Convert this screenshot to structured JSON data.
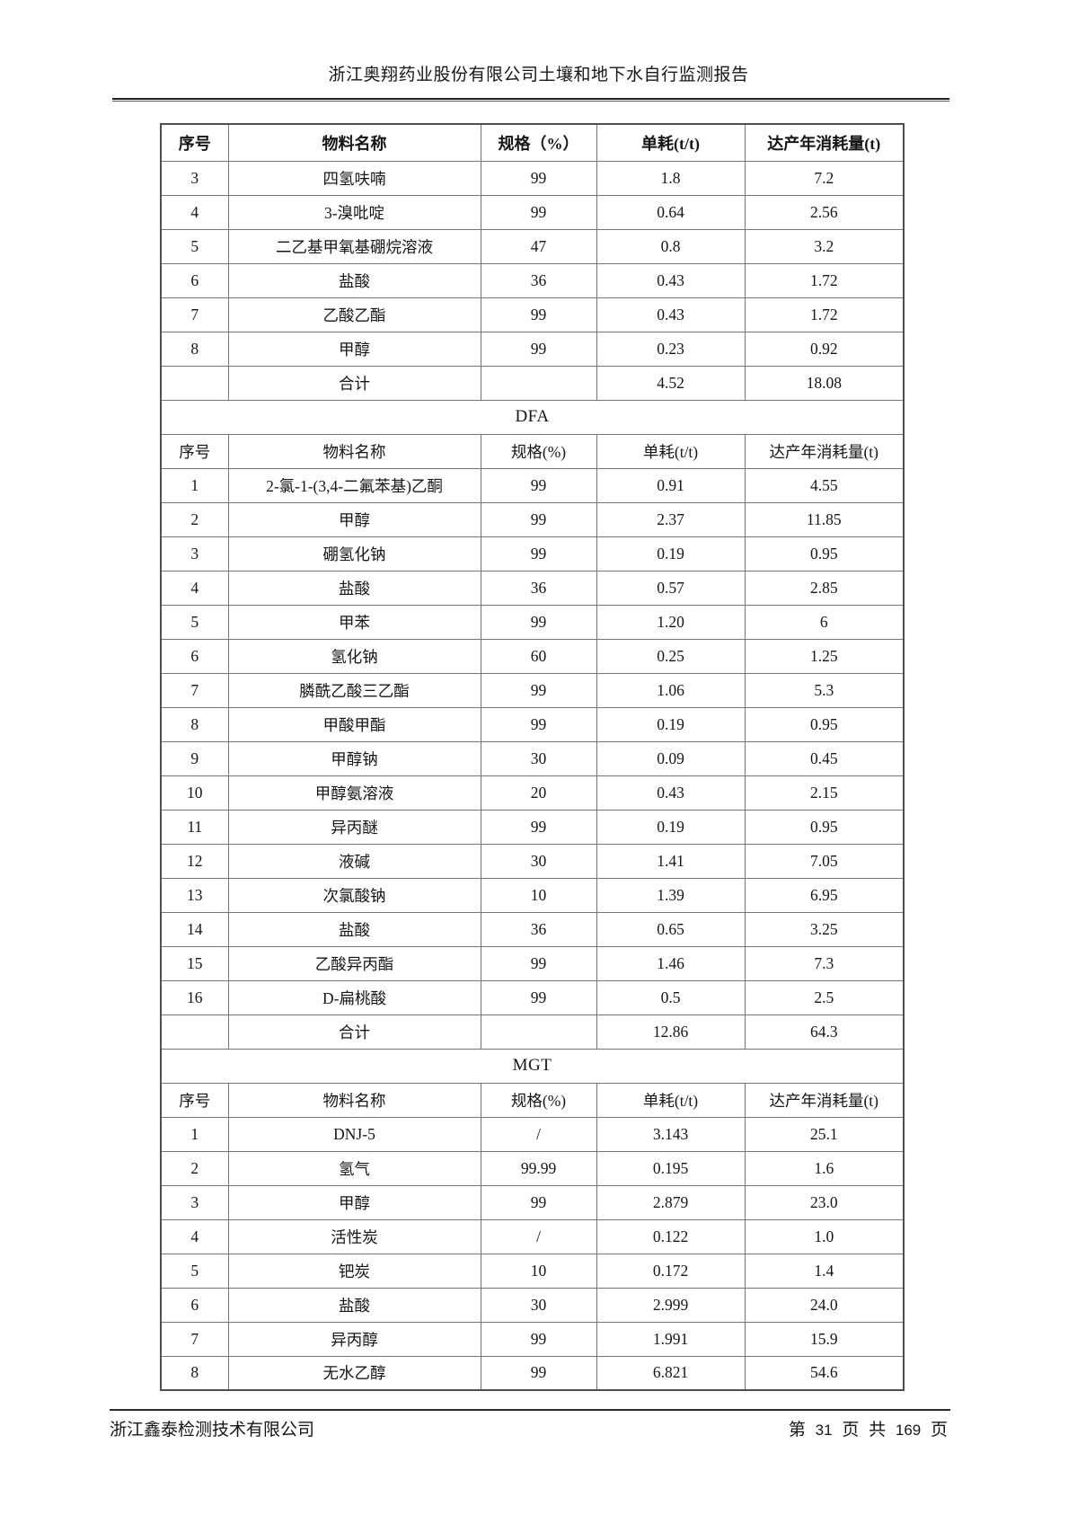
{
  "header": {
    "title": "浙江奥翔药业股份有限公司土壤和地下水自行监测报告"
  },
  "table": {
    "sections": [
      {
        "band": null,
        "header_bold": true,
        "columns": [
          "序号",
          "物料名称",
          "规格（%）",
          "单耗(t/t)",
          "达产年消耗量(t)"
        ],
        "rows": [
          [
            "3",
            "四氢呋喃",
            "99",
            "1.8",
            "7.2"
          ],
          [
            "4",
            "3-溴吡啶",
            "99",
            "0.64",
            "2.56"
          ],
          [
            "5",
            "二乙基甲氧基硼烷溶液",
            "47",
            "0.8",
            "3.2"
          ],
          [
            "6",
            "盐酸",
            "36",
            "0.43",
            "1.72"
          ],
          [
            "7",
            "乙酸乙酯",
            "99",
            "0.43",
            "1.72"
          ],
          [
            "8",
            "甲醇",
            "99",
            "0.23",
            "0.92"
          ],
          [
            "",
            "合计",
            "",
            "4.52",
            "18.08"
          ]
        ]
      },
      {
        "band": "DFA",
        "header_bold": false,
        "columns": [
          "序号",
          "物料名称",
          "规格(%)",
          "单耗(t/t)",
          "达产年消耗量(t)"
        ],
        "rows": [
          [
            "1",
            "2-氯-1-(3,4-二氟苯基)乙酮",
            "99",
            "0.91",
            "4.55"
          ],
          [
            "2",
            "甲醇",
            "99",
            "2.37",
            "11.85"
          ],
          [
            "3",
            "硼氢化钠",
            "99",
            "0.19",
            "0.95"
          ],
          [
            "4",
            "盐酸",
            "36",
            "0.57",
            "2.85"
          ],
          [
            "5",
            "甲苯",
            "99",
            "1.20",
            "6"
          ],
          [
            "6",
            "氢化钠",
            "60",
            "0.25",
            "1.25"
          ],
          [
            "7",
            "膦酰乙酸三乙酯",
            "99",
            "1.06",
            "5.3"
          ],
          [
            "8",
            "甲酸甲酯",
            "99",
            "0.19",
            "0.95"
          ],
          [
            "9",
            "甲醇钠",
            "30",
            "0.09",
            "0.45"
          ],
          [
            "10",
            "甲醇氨溶液",
            "20",
            "0.43",
            "2.15"
          ],
          [
            "11",
            "异丙醚",
            "99",
            "0.19",
            "0.95"
          ],
          [
            "12",
            "液碱",
            "30",
            "1.41",
            "7.05"
          ],
          [
            "13",
            "次氯酸钠",
            "10",
            "1.39",
            "6.95"
          ],
          [
            "14",
            "盐酸",
            "36",
            "0.65",
            "3.25"
          ],
          [
            "15",
            "乙酸异丙酯",
            "99",
            "1.46",
            "7.3"
          ],
          [
            "16",
            "D-扁桃酸",
            "99",
            "0.5",
            "2.5"
          ],
          [
            "",
            "合计",
            "",
            "12.86",
            "64.3"
          ]
        ]
      },
      {
        "band": "MGT",
        "header_bold": false,
        "columns": [
          "序号",
          "物料名称",
          "规格(%)",
          "单耗(t/t)",
          "达产年消耗量(t)"
        ],
        "rows": [
          [
            "1",
            "DNJ-5",
            "/",
            "3.143",
            "25.1"
          ],
          [
            "2",
            "氢气",
            "99.99",
            "0.195",
            "1.6"
          ],
          [
            "3",
            "甲醇",
            "99",
            "2.879",
            "23.0"
          ],
          [
            "4",
            "活性炭",
            "/",
            "0.122",
            "1.0"
          ],
          [
            "5",
            "钯炭",
            "10",
            "0.172",
            "1.4"
          ],
          [
            "6",
            "盐酸",
            "30",
            "2.999",
            "24.0"
          ],
          [
            "7",
            "异丙醇",
            "99",
            "1.991",
            "15.9"
          ],
          [
            "8",
            "无水乙醇",
            "99",
            "6.821",
            "54.6"
          ]
        ]
      }
    ]
  },
  "footer": {
    "company": "浙江鑫泰检测技术有限公司",
    "page": {
      "prefix": "第",
      "current": "31",
      "mid1": "页",
      "mid2": "共",
      "total": "169",
      "suffix": "页"
    }
  }
}
